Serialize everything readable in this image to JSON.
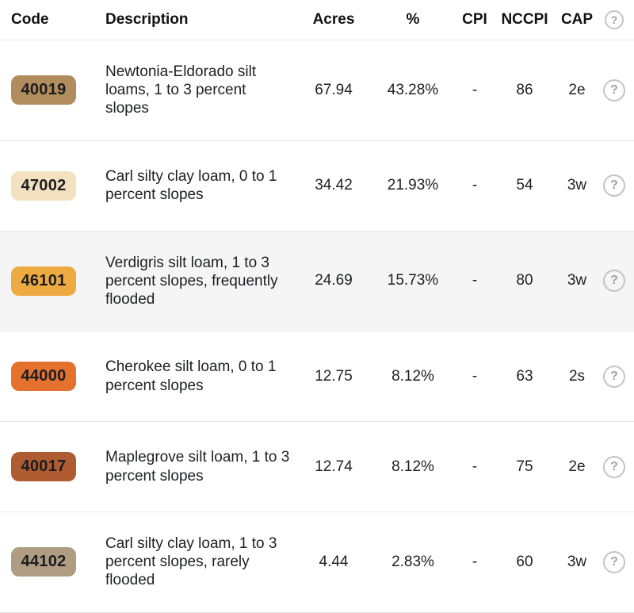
{
  "colors": {
    "row_highlight": "#f5f5f5",
    "separator": "#e7e7e7",
    "help_icon_gray": "#a3a3a3"
  },
  "table": {
    "header": {
      "code": "Code",
      "description": "Description",
      "acres": "Acres",
      "pct": "%",
      "cpi": "CPI",
      "nccpi": "NCCPI",
      "cap": "CAP",
      "help_icon": "?"
    },
    "row_help_icon": "?",
    "rows": [
      {
        "code": "40019",
        "badge_color": "#b18c5c",
        "description": "Newtonia-Eldorado silt loams, 1 to 3 percent slopes",
        "acres": "67.94",
        "pct": "43.28%",
        "cpi": "-",
        "nccpi": "86",
        "cap": "2e",
        "highlighted": false
      },
      {
        "code": "47002",
        "badge_color": "#f3e1c0",
        "description": "Carl silty clay loam, 0 to 1 percent slopes",
        "acres": "34.42",
        "pct": "21.93%",
        "cpi": "-",
        "nccpi": "54",
        "cap": "3w",
        "highlighted": false
      },
      {
        "code": "46101",
        "badge_color": "#ecaa41",
        "description": "Verdigris silt loam, 1 to 3 percent slopes, frequently flooded",
        "acres": "24.69",
        "pct": "15.73%",
        "cpi": "-",
        "nccpi": "80",
        "cap": "3w",
        "highlighted": true
      },
      {
        "code": "44000",
        "badge_color": "#e4722e",
        "description": "Cherokee silt loam, 0 to 1 percent slopes",
        "acres": "12.75",
        "pct": "8.12%",
        "cpi": "-",
        "nccpi": "63",
        "cap": "2s",
        "highlighted": false
      },
      {
        "code": "40017",
        "badge_color": "#b05c33",
        "description": "Maplegrove silt loam, 1 to 3 percent slopes",
        "acres": "12.74",
        "pct": "8.12%",
        "cpi": "-",
        "nccpi": "75",
        "cap": "2e",
        "highlighted": false
      },
      {
        "code": "44102",
        "badge_color": "#af9c83",
        "description": "Carl silty clay loam, 1 to 3 percent slopes, rarely flooded",
        "acres": "4.44",
        "pct": "2.83%",
        "cpi": "-",
        "nccpi": "60",
        "cap": "3w",
        "highlighted": false
      }
    ]
  }
}
